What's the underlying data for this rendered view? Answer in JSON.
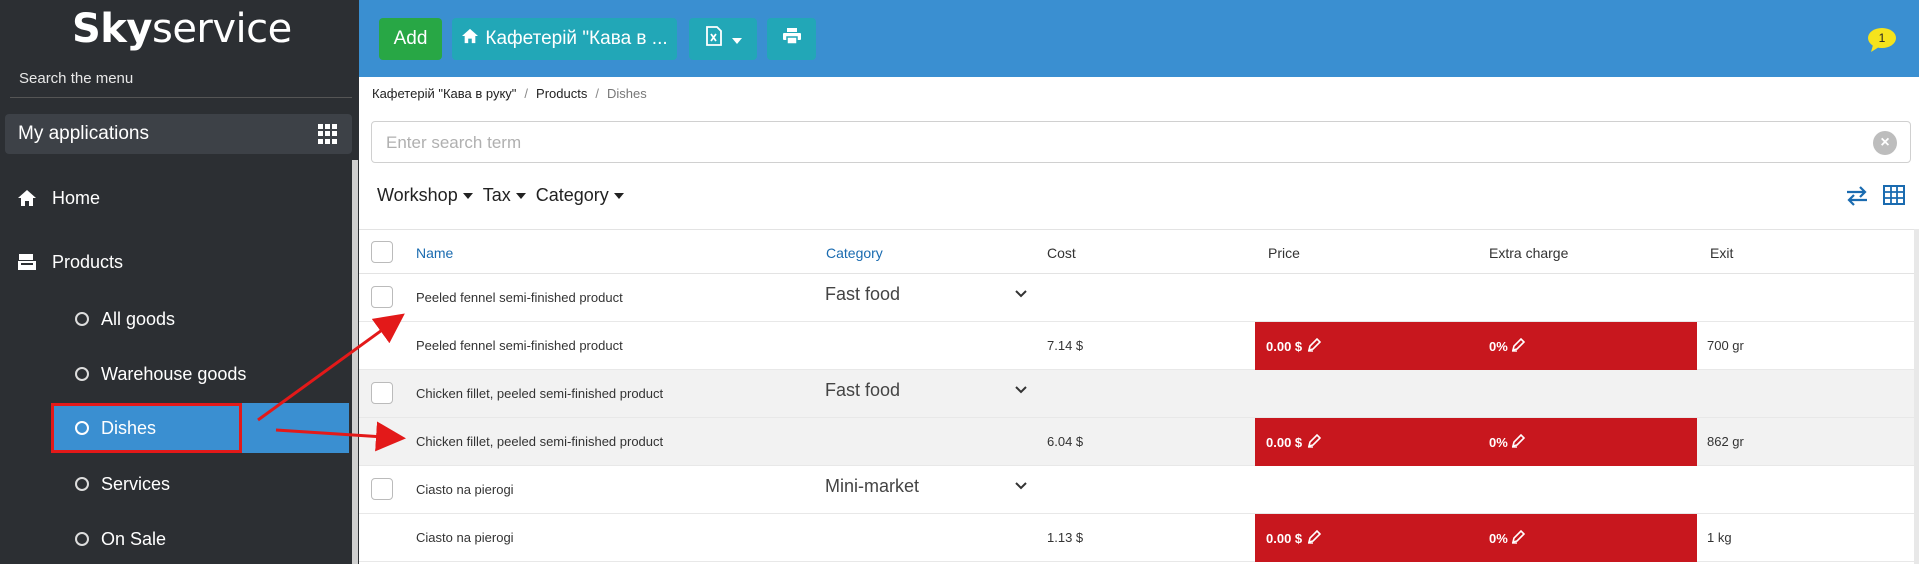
{
  "brand": {
    "bold": "Sky",
    "light": "service"
  },
  "sidebar": {
    "search_label": "Search the menu",
    "my_apps": "My applications",
    "home": "Home",
    "products": "Products",
    "sub_items": [
      "All goods",
      "Warehouse goods",
      "Dishes",
      "Services",
      "On Sale"
    ]
  },
  "toolbar": {
    "add": "Add",
    "shop": "Кафетерій \"Кава в ...",
    "notifications": "1"
  },
  "breadcrumb": {
    "shop": "Кафетерій \"Кава в руку\"",
    "products": "Products",
    "current": "Dishes"
  },
  "search": {
    "placeholder": "Enter search term"
  },
  "filters": {
    "workshop": "Workshop",
    "tax": "Tax",
    "category": "Category"
  },
  "table": {
    "headers": {
      "name": "Name",
      "category": "Category",
      "cost": "Cost",
      "price": "Price",
      "extra": "Extra charge",
      "exit": "Exit"
    },
    "rows": [
      {
        "name": "Peeled fennel semi-finished product",
        "category": "Fast food"
      },
      {
        "name": "Peeled fennel semi-finished product",
        "cost": "7.14 $",
        "price": "0.00 $",
        "extra": "0%",
        "exit": "700 gr"
      },
      {
        "name": "Chicken fillet, peeled semi-finished product",
        "category": "Fast food"
      },
      {
        "name": "Chicken fillet, peeled semi-finished product",
        "cost": "6.04 $",
        "price": "0.00 $",
        "extra": "0%",
        "exit": "862 gr"
      },
      {
        "name": "Ciasto na pierogi",
        "category": "Mini-market"
      },
      {
        "name": "Ciasto na pierogi",
        "cost": "1.13 $",
        "price": "0.00 $",
        "extra": "0%",
        "exit": "1 kg"
      }
    ]
  },
  "colors": {
    "sidebar": "#2c2f33",
    "topbar": "#3a8fd1",
    "add": "#28a745",
    "teal": "#22a7b7",
    "red": "#c8171e",
    "annotation": "#e31919"
  }
}
